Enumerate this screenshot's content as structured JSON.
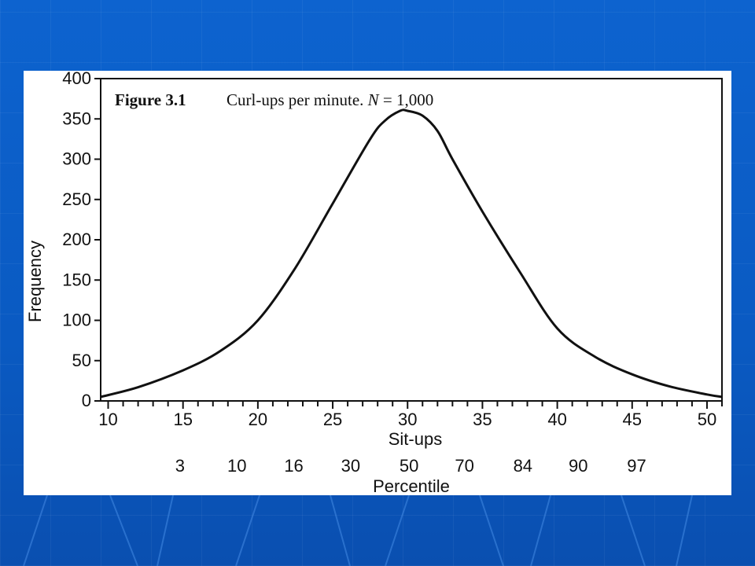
{
  "chart_data": {
    "type": "line",
    "figure_label": "Figure 3.1",
    "title_text": "Curl-ups per minute. ",
    "title_n_symbol": "N",
    "title_n_value": " = 1,000",
    "xlabel": "Sit-ups",
    "ylabel": "Frequency",
    "xlim": [
      9.5,
      51
    ],
    "ylim": [
      0,
      400
    ],
    "x_ticks": [
      10,
      15,
      20,
      25,
      30,
      35,
      40,
      45,
      50
    ],
    "y_ticks": [
      0,
      50,
      100,
      150,
      200,
      250,
      300,
      350,
      400
    ],
    "percentile_label": "Percentile",
    "percentile_ticks": [
      {
        "situps": 14.8,
        "label": "3"
      },
      {
        "situps": 18.6,
        "label": "10"
      },
      {
        "situps": 22.4,
        "label": "16"
      },
      {
        "situps": 26.2,
        "label": "30"
      },
      {
        "situps": 30.1,
        "label": "50"
      },
      {
        "situps": 33.8,
        "label": "70"
      },
      {
        "situps": 37.7,
        "label": "84"
      },
      {
        "situps": 41.4,
        "label": "90"
      },
      {
        "situps": 45.3,
        "label": "97"
      }
    ],
    "series": [
      {
        "x": [
          9.5,
          12,
          15,
          17.5,
          20,
          22.5,
          25,
          27.5,
          28.5,
          29.5,
          30,
          31,
          32,
          33,
          35,
          37.5,
          40,
          42.5,
          45,
          47.5,
          50,
          51
        ],
        "y": [
          5,
          17,
          38,
          62,
          100,
          165,
          245,
          325,
          348,
          360,
          360,
          354,
          335,
          300,
          235,
          160,
          90,
          55,
          33,
          18,
          8,
          5
        ]
      }
    ]
  }
}
